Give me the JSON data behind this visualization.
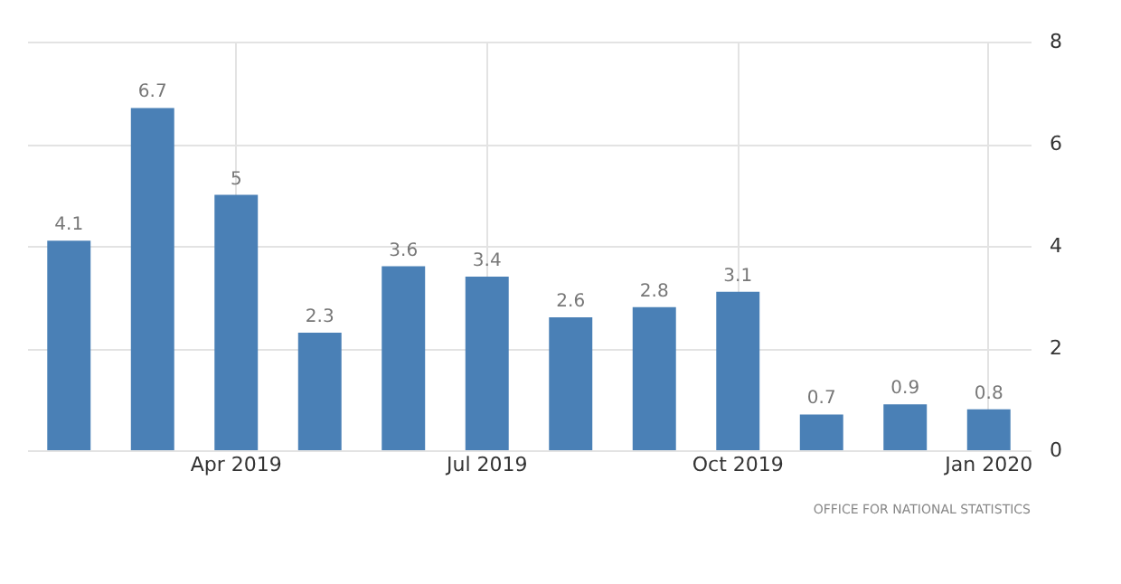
{
  "chart_data": {
    "type": "bar",
    "categories": [
      null,
      null,
      "Apr 2019",
      null,
      null,
      "Jul 2019",
      null,
      null,
      "Oct 2019",
      null,
      null,
      "Jan 2020"
    ],
    "values": [
      4.1,
      6.7,
      5,
      2.3,
      3.6,
      3.4,
      2.6,
      2.8,
      3.1,
      0.7,
      0.9,
      0.8
    ],
    "color": "#4a80b6",
    "ylim": [
      0,
      8
    ],
    "yticks": [
      0,
      2,
      4,
      6,
      8
    ],
    "grid": true,
    "data_labels": true,
    "annotations": [
      "OFFICE FOR NATIONAL STATISTICS"
    ]
  }
}
